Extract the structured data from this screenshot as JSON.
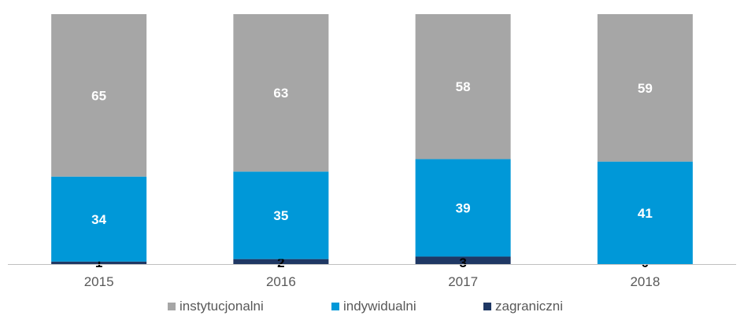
{
  "chart_data": {
    "type": "bar",
    "stacked": true,
    "normalized": true,
    "categories": [
      "2015",
      "2016",
      "2017",
      "2018"
    ],
    "series": [
      {
        "name": "zagraniczni",
        "values": [
          1,
          2,
          3,
          0
        ],
        "color": "#1f3864"
      },
      {
        "name": "indywidualni",
        "values": [
          34,
          35,
          39,
          41
        ],
        "color": "#0098d8"
      },
      {
        "name": "instytucjonalni",
        "values": [
          65,
          63,
          58,
          59
        ],
        "color": "#a6a6a6"
      }
    ],
    "title": "",
    "xlabel": "",
    "ylabel": "",
    "ylim": [
      0,
      100
    ],
    "grid": false,
    "legend_position": "bottom",
    "legend_order": [
      "instytucjonalni",
      "indywidualni",
      "zagraniczni"
    ]
  }
}
